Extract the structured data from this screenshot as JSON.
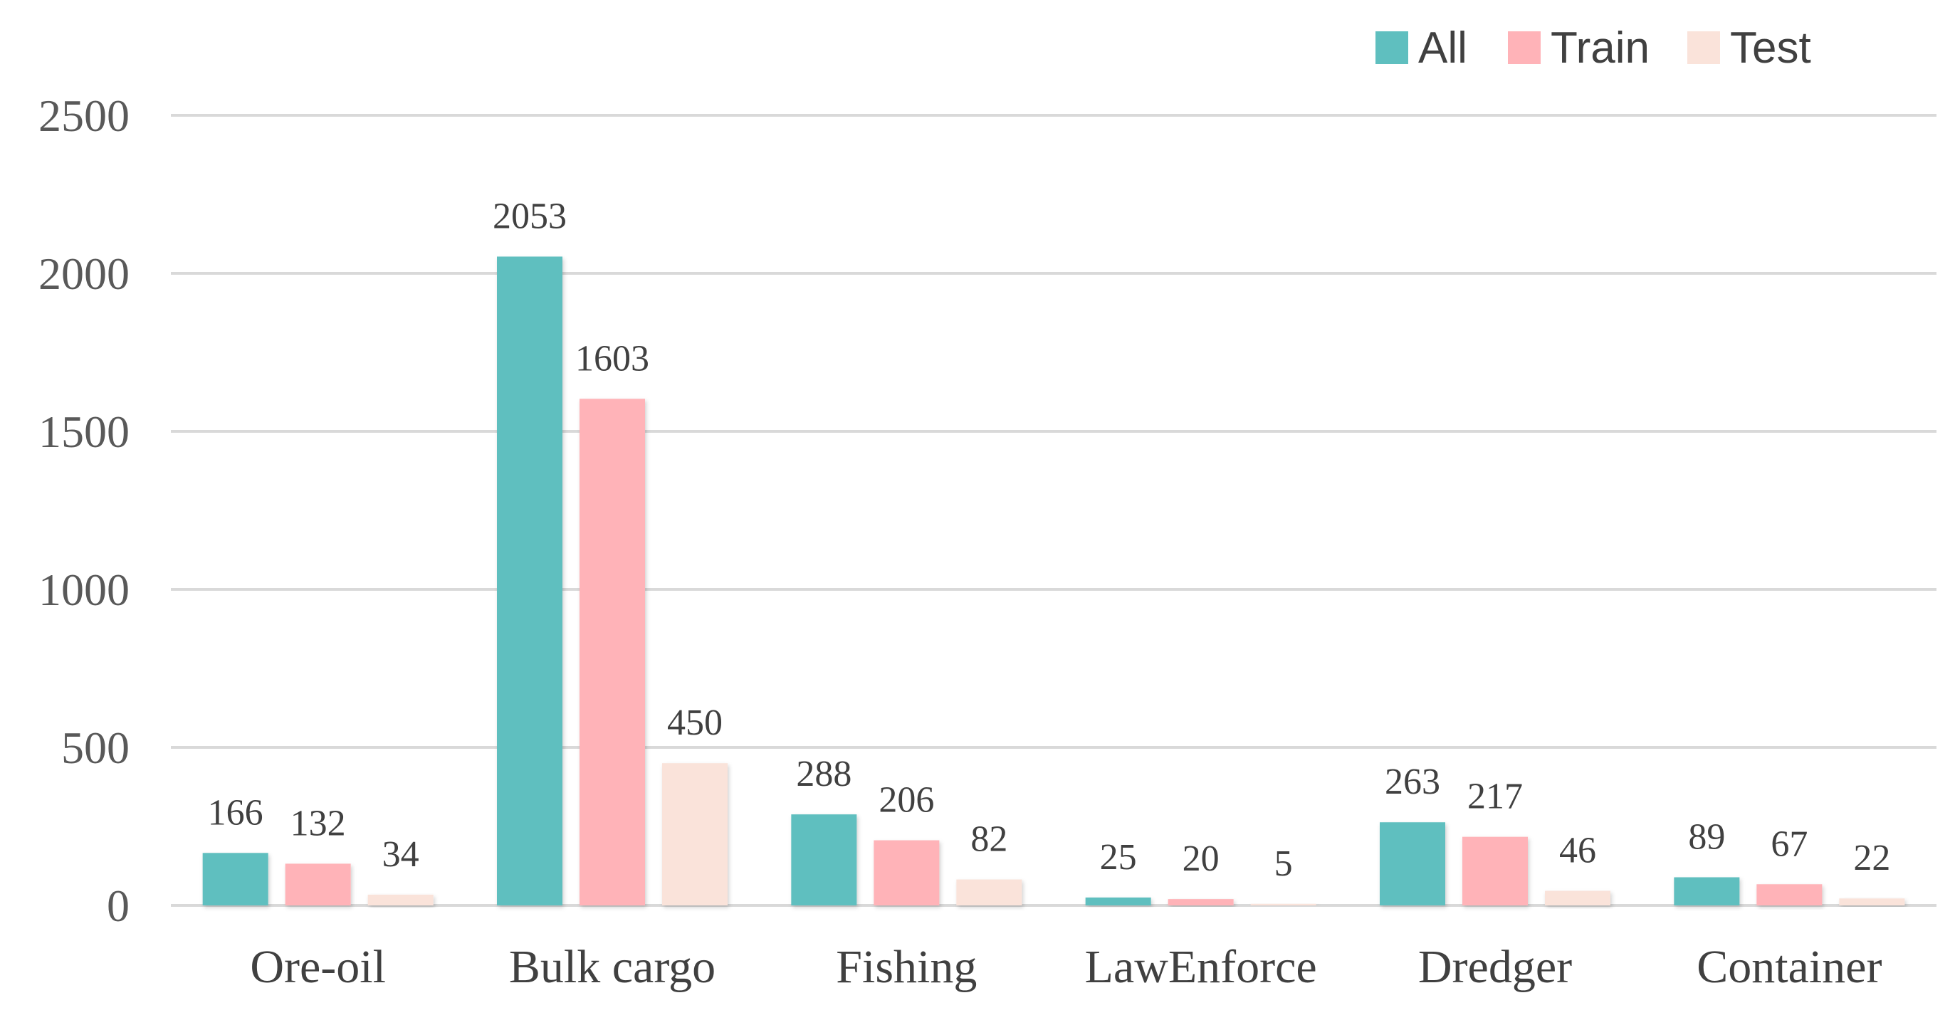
{
  "chart_data": {
    "type": "bar",
    "title": "",
    "xlabel": "",
    "ylabel": "",
    "ylim": [
      0,
      2500
    ],
    "yticks": [
      0,
      500,
      1000,
      1500,
      2000,
      2500
    ],
    "grid": true,
    "legend_position": "top-right",
    "categories": [
      "Ore-oil",
      "Bulk cargo",
      "Fishing",
      "LawEnforce",
      "Dredger",
      "Container"
    ],
    "series": [
      {
        "name": "All",
        "color": "#5fbfbf",
        "values": [
          166,
          2053,
          288,
          25,
          263,
          89
        ]
      },
      {
        "name": "Train",
        "color": "#ffb3b8",
        "values": [
          132,
          1603,
          206,
          20,
          217,
          67
        ]
      },
      {
        "name": "Test",
        "color": "#fae3da",
        "values": [
          34,
          450,
          82,
          5,
          46,
          22
        ]
      }
    ]
  }
}
